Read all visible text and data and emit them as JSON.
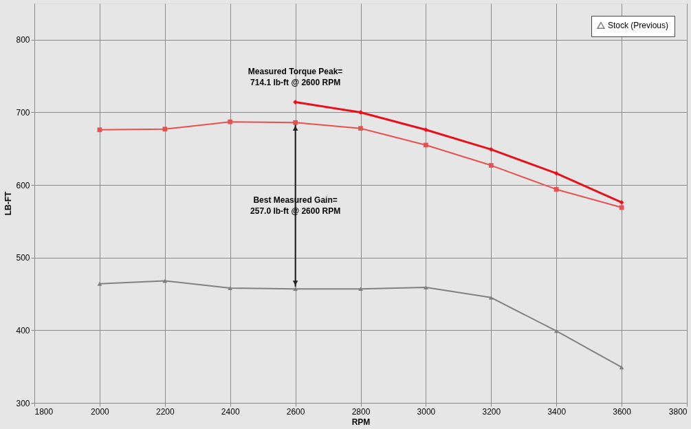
{
  "chart_data": {
    "type": "line",
    "xlabel": "RPM",
    "ylabel": "LB-FT",
    "xlim": [
      1800,
      3800
    ],
    "xticks": [
      1800,
      2000,
      2200,
      2400,
      2600,
      2800,
      3000,
      3200,
      3400,
      3600,
      3800
    ],
    "ylim": [
      300,
      850
    ],
    "yticks": [
      300,
      400,
      500,
      600,
      700,
      800
    ],
    "grid": true,
    "legend": "top right",
    "line_style": "solid",
    "series": [
      {
        "color": "#e8101a",
        "marker": "diamond",
        "x": [
          2600,
          2800,
          3000,
          3200,
          3400,
          3600
        ],
        "values": [
          714.1,
          700,
          676,
          649,
          616,
          576
        ]
      },
      {
        "color": "#e85050",
        "marker": "square",
        "x": [
          2000,
          2200,
          2400,
          2600,
          2800,
          3000,
          3200,
          3400,
          3600
        ],
        "values": [
          676,
          677,
          687,
          686,
          678,
          655,
          627,
          594,
          569
        ]
      },
      {
        "name": "Stock (Previous)",
        "color": "#808080",
        "marker": "triangle",
        "x": [
          2000,
          2200,
          2400,
          2600,
          2800,
          3000,
          3200,
          3400,
          3600
        ],
        "values": [
          464,
          468,
          458,
          457,
          457,
          459,
          445,
          399,
          349
        ]
      }
    ],
    "annotations": [
      {
        "text": "Measured Torque Peak=\n714.1 lb-ft @ 2600 RPM",
        "x": 2600,
        "y": 714.1
      },
      "Best Measured Gain=\n257.0 lb-ft @ 2600 RPM"
    ]
  }
}
